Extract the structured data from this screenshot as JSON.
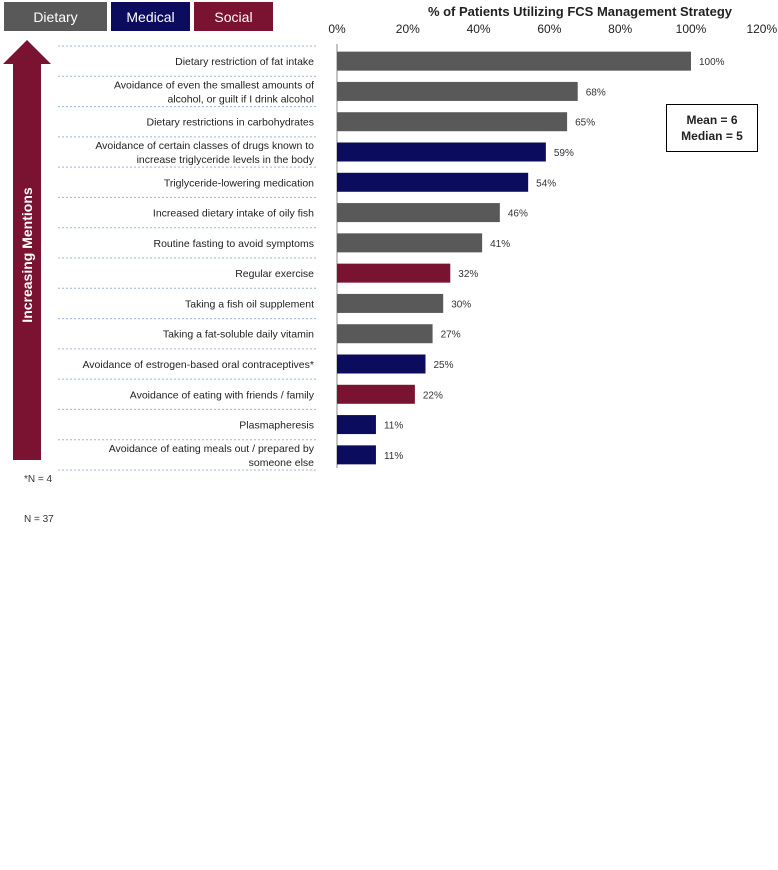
{
  "legend": [
    {
      "label": "Dietary",
      "color": "#595959"
    },
    {
      "label": "Medical",
      "color": "#0c0c5e"
    },
    {
      "label": "Social",
      "color": "#7a1232"
    }
  ],
  "arrow_label": "Increasing Mentions",
  "stats": {
    "mean": "Mean = 6",
    "median": "Median = 5"
  },
  "footnote": "*N = 4",
  "sample": "N = 37",
  "chart_data": {
    "type": "bar",
    "orientation": "horizontal",
    "title": "% of Patients Utilizing FCS Management Strategy",
    "xlim": [
      0,
      120
    ],
    "ticks": [
      "0%",
      "20%",
      "40%",
      "60%",
      "80%",
      "100%",
      "120%"
    ],
    "categories": [
      [
        "Dietary restriction of fat intake"
      ],
      [
        "Avoidance of even  the smallest amounts of",
        "alcohol, or guilt if I drink alcohol"
      ],
      [
        "Dietary restrictions in carbohydrates"
      ],
      [
        "Avoidance of certain classes of drugs known to",
        "increase triglyceride levels in the body"
      ],
      [
        "Triglyceride-lowering medication"
      ],
      [
        "Increased dietary intake of oily fish"
      ],
      [
        "Routine fasting to avoid symptoms"
      ],
      [
        "Regular exercise"
      ],
      [
        "Taking a fish oil supplement"
      ],
      [
        "Taking a fat-soluble daily vitamin"
      ],
      [
        "Avoidance of estrogen-based oral contraceptives*"
      ],
      [
        "Avoidance of eating with friends / family"
      ],
      [
        "Plasmapheresis"
      ],
      [
        "Avoidance of eating meals out / prepared by",
        "someone else"
      ]
    ],
    "values": [
      100,
      68,
      65,
      59,
      54,
      46,
      41,
      32,
      30,
      27,
      25,
      22,
      11,
      11
    ],
    "labels": [
      "100%",
      "68%",
      "65%",
      "59%",
      "54%",
      "46%",
      "41%",
      "32%",
      "30%",
      "27%",
      "25%",
      "22%",
      "11%",
      "11%"
    ],
    "groups": [
      "Dietary",
      "Dietary",
      "Dietary",
      "Medical",
      "Medical",
      "Dietary",
      "Dietary",
      "Social",
      "Dietary",
      "Dietary",
      "Medical",
      "Social",
      "Medical",
      "Medical"
    ]
  }
}
